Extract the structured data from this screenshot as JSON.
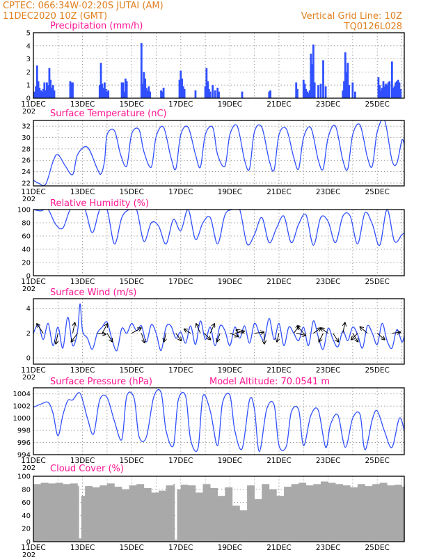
{
  "header": {
    "line1_left": "CPTEC:   066:34W-02:20S   JUTAI (AM)",
    "line2_left": "11DEC2020 10Z (GMT)",
    "line1_right": "Vertical Grid Line: 10Z",
    "line2_right": "TQ0126L028"
  },
  "year_fragment": "202",
  "colors": {
    "header": "#e08020",
    "panel_title": "#ff1493",
    "series": "#3050ff",
    "cloud": "#a9a9a9",
    "arrow": "#000000"
  },
  "chart_data": [
    {
      "id": "precip",
      "type": "bar",
      "title": "Precipitation (mm/h)",
      "ylim": [
        0,
        5
      ],
      "yticks": [
        0,
        1,
        2,
        3,
        4,
        5
      ],
      "xlabels": [
        "11DEC",
        "13DEC",
        "15DEC",
        "17DEC",
        "19DEC",
        "21DEC",
        "23DEC",
        "25DEC"
      ],
      "x_unit": "day offset from 11DEC 10Z",
      "xlim": [
        0,
        15.1
      ],
      "x": [
        0.05,
        0.1,
        0.15,
        0.2,
        0.25,
        0.3,
        0.35,
        0.4,
        0.45,
        0.5,
        0.55,
        0.6,
        0.65,
        0.7,
        0.75,
        0.8,
        0.85,
        1.5,
        1.55,
        1.6,
        2.7,
        2.75,
        2.8,
        2.85,
        2.9,
        2.95,
        3.0,
        3.05,
        3.6,
        3.65,
        3.7,
        3.75,
        3.8,
        4.4,
        4.45,
        4.5,
        4.55,
        4.6,
        4.65,
        4.7,
        4.75,
        5.2,
        5.25,
        5.3,
        5.95,
        6.0,
        6.05,
        6.1,
        6.15,
        6.6,
        7.0,
        7.05,
        7.1,
        7.15,
        7.2,
        7.3,
        7.4,
        7.5,
        7.55,
        8.5,
        9.6,
        9.65,
        10.7,
        10.75,
        11.0,
        11.05,
        11.1,
        11.15,
        11.2,
        11.25,
        11.3,
        11.35,
        11.4,
        11.45,
        11.6,
        11.7,
        11.8,
        11.9,
        12.6,
        12.65,
        12.7,
        12.75,
        12.8,
        12.85,
        13.0,
        13.1,
        14.05,
        14.1,
        14.15,
        14.2,
        14.25,
        14.3,
        14.35,
        14.4,
        14.45,
        14.5,
        14.6,
        14.65,
        14.7,
        14.75,
        14.8,
        14.85,
        14.9,
        14.95
      ],
      "values": [
        0.5,
        0.9,
        2.5,
        1.3,
        0.8,
        0.6,
        0.5,
        0.7,
        1.2,
        0.6,
        1.2,
        1.0,
        2.3,
        1.4,
        0.8,
        1.0,
        0.6,
        1.3,
        1.2,
        1.2,
        1.0,
        2.7,
        1.1,
        0.8,
        1.2,
        0.7,
        0.5,
        0.6,
        1.2,
        1.2,
        0.5,
        1.5,
        1.3,
        4.2,
        1.1,
        2.0,
        1.5,
        0.8,
        0.6,
        0.9,
        0.5,
        0.6,
        0.5,
        0.8,
        1.4,
        2.1,
        1.5,
        0.9,
        0.7,
        0.6,
        0.9,
        2.3,
        1.3,
        0.7,
        0.5,
        1.0,
        0.6,
        0.8,
        0.5,
        0.5,
        0.5,
        0.6,
        1.2,
        0.7,
        1.4,
        1.1,
        0.7,
        0.5,
        0.4,
        0.6,
        3.4,
        2.6,
        4.1,
        1.2,
        1.0,
        1.1,
        2.9,
        0.9,
        0.6,
        1.3,
        3.5,
        2.0,
        2.7,
        1.0,
        1.2,
        0.5,
        1.6,
        1.0,
        0.6,
        0.8,
        1.3,
        0.9,
        1.1,
        1.0,
        1.2,
        1.3,
        2.8,
        0.8,
        0.9,
        1.2,
        1.3,
        1.4,
        1.2,
        0.7
      ]
    },
    {
      "id": "temp",
      "type": "line",
      "title": "Surface Temperature (nC)",
      "ylim": [
        21.5,
        33
      ],
      "yticks": [
        22,
        24,
        26,
        28,
        30,
        32
      ],
      "xlabels": [
        "11DEC",
        "13DEC",
        "15DEC",
        "17DEC",
        "19DEC",
        "21DEC",
        "23DEC",
        "25DEC"
      ],
      "x_unit": "day offset from 11DEC 10Z",
      "xlim": [
        0,
        15.1
      ],
      "x": [
        0,
        0.2,
        0.5,
        0.8,
        1.0,
        1.3,
        1.6,
        1.8,
        2.2,
        2.6,
        2.75,
        2.9,
        3.0,
        3.3,
        3.55,
        3.8,
        4.0,
        4.3,
        4.5,
        4.8,
        5.0,
        5.3,
        5.6,
        5.8,
        6.0,
        6.3,
        6.6,
        6.8,
        7.0,
        7.3,
        7.5,
        7.8,
        8.0,
        8.3,
        8.6,
        8.8,
        9.0,
        9.3,
        9.6,
        9.8,
        10.0,
        10.3,
        10.6,
        10.8,
        11.0,
        11.3,
        11.6,
        11.8,
        12.0,
        12.3,
        12.6,
        12.8,
        13.0,
        13.3,
        13.6,
        13.8,
        14.0,
        14.3,
        14.6,
        14.8,
        15.0,
        15.1
      ],
      "values": [
        22.5,
        22.0,
        21.8,
        25.8,
        27.0,
        25.0,
        23.5,
        27.0,
        28.3,
        24.5,
        23.6,
        26.0,
        30.5,
        31.2,
        27.0,
        25.0,
        30.6,
        31.4,
        27.5,
        24.8,
        30.2,
        31.8,
        26.5,
        24.5,
        30.5,
        31.8,
        27.0,
        24.8,
        30.5,
        31.8,
        27.0,
        25.0,
        30.5,
        32.0,
        26.0,
        24.5,
        31.0,
        31.8,
        26.0,
        24.3,
        30.5,
        31.5,
        26.5,
        24.5,
        30.0,
        31.7,
        26.0,
        24.5,
        30.0,
        32.0,
        26.0,
        24.5,
        30.5,
        32.2,
        26.5,
        25.0,
        31.0,
        33.0,
        26.0,
        25.5,
        29.5,
        28.8
      ]
    },
    {
      "id": "rh",
      "type": "line",
      "title": "Relative Humidity (%)",
      "ylim": [
        0,
        100
      ],
      "yticks": [
        0,
        20,
        40,
        60,
        80,
        100
      ],
      "xlabels": [
        "11DEC",
        "13DEC",
        "15DEC",
        "17DEC",
        "19DEC",
        "21DEC",
        "23DEC",
        "25DEC"
      ],
      "x_unit": "day offset from 11DEC 10Z",
      "xlim": [
        0,
        15.1
      ],
      "x": [
        0,
        0.3,
        0.6,
        0.9,
        1.2,
        1.5,
        1.8,
        2.1,
        2.4,
        2.7,
        3.0,
        3.3,
        3.6,
        3.9,
        4.2,
        4.5,
        4.8,
        5.1,
        5.4,
        5.7,
        6.0,
        6.3,
        6.6,
        6.9,
        7.2,
        7.5,
        7.8,
        8.1,
        8.4,
        8.7,
        9.0,
        9.3,
        9.6,
        9.9,
        10.2,
        10.5,
        10.8,
        11.1,
        11.4,
        11.7,
        12.0,
        12.3,
        12.6,
        12.9,
        13.2,
        13.5,
        13.8,
        14.1,
        14.4,
        14.7,
        15.0,
        15.1
      ],
      "values": [
        100,
        98,
        100,
        78,
        72,
        100,
        100,
        100,
        65,
        100,
        100,
        48,
        88,
        100,
        100,
        52,
        80,
        75,
        48,
        85,
        68,
        100,
        55,
        80,
        88,
        48,
        92,
        100,
        100,
        48,
        62,
        88,
        50,
        72,
        90,
        50,
        78,
        92,
        46,
        88,
        82,
        50,
        90,
        90,
        48,
        95,
        78,
        46,
        100,
        52,
        62,
        64
      ]
    },
    {
      "id": "wind",
      "type": "line",
      "title": "Surface Wind (m/s)",
      "ylim": [
        -0.5,
        4.8
      ],
      "yticks": [
        0,
        2,
        4
      ],
      "xlabels": [
        "11DEC",
        "13DEC",
        "15DEC",
        "17DEC",
        "19DEC",
        "21DEC",
        "23DEC",
        "25DEC"
      ],
      "x_unit": "day offset from 11DEC 10Z",
      "xlim": [
        0,
        15.1
      ],
      "x": [
        0,
        0.2,
        0.4,
        0.6,
        0.8,
        1.0,
        1.2,
        1.4,
        1.6,
        1.8,
        1.9,
        2.0,
        2.2,
        2.4,
        2.6,
        2.8,
        3.0,
        3.2,
        3.4,
        3.6,
        3.8,
        4.0,
        4.2,
        4.4,
        4.6,
        4.8,
        5.0,
        5.2,
        5.4,
        5.6,
        5.8,
        6.0,
        6.2,
        6.4,
        6.6,
        6.8,
        7.0,
        7.2,
        7.4,
        7.6,
        7.8,
        8.0,
        8.2,
        8.4,
        8.6,
        8.8,
        9.0,
        9.2,
        9.4,
        9.6,
        9.8,
        10.0,
        10.2,
        10.4,
        10.6,
        10.8,
        11.0,
        11.2,
        11.4,
        11.6,
        11.8,
        12.0,
        12.2,
        12.4,
        12.6,
        12.8,
        13.0,
        13.2,
        13.4,
        13.6,
        13.8,
        14.0,
        14.2,
        14.4,
        14.6,
        14.8,
        15.0,
        15.1
      ],
      "values": [
        2.0,
        2.7,
        1.5,
        2.8,
        1.0,
        2.5,
        0.8,
        3.3,
        1.0,
        2.2,
        4.4,
        2.2,
        1.6,
        0.7,
        2.0,
        2.5,
        2.9,
        1.5,
        0.6,
        2.4,
        2.0,
        2.8,
        2.2,
        2.6,
        1.3,
        2.7,
        2.0,
        0.6,
        2.5,
        2.6,
        1.6,
        2.1,
        1.2,
        2.6,
        1.1,
        3.0,
        1.5,
        2.5,
        1.0,
        2.6,
        2.2,
        1.0,
        2.5,
        1.6,
        2.6,
        1.2,
        2.8,
        2.0,
        1.5,
        3.2,
        1.5,
        2.8,
        1.0,
        2.5,
        2.0,
        1.4,
        2.5,
        1.0,
        3.0,
        1.7,
        0.7,
        2.4,
        1.5,
        0.9,
        2.2,
        1.4,
        2.5,
        1.9,
        0.8,
        2.6,
        2.0,
        1.1,
        2.8,
        1.4,
        0.8,
        2.3,
        1.3,
        1.8
      ],
      "vectors": [
        {
          "x": 0.4,
          "dx": -0.6,
          "dy": 0.9
        },
        {
          "x": 1.0,
          "dx": -0.2,
          "dy": -1.0
        },
        {
          "x": 1.6,
          "dx": 0.2,
          "dy": 1.0
        },
        {
          "x": 1.8,
          "dx": -0.6,
          "dy": -0.8
        },
        {
          "x": 2.6,
          "dx": 0.8,
          "dy": -0.1
        },
        {
          "x": 2.8,
          "dx": 0.5,
          "dy": 0.9
        },
        {
          "x": 3.0,
          "dx": 0.5,
          "dy": -0.8
        },
        {
          "x": 4.0,
          "dx": 0.9,
          "dy": 0.5
        },
        {
          "x": 4.4,
          "dx": 0.3,
          "dy": -0.9
        },
        {
          "x": 5.4,
          "dx": -0.2,
          "dy": -0.8
        },
        {
          "x": 5.8,
          "dx": 0.5,
          "dy": -0.7
        },
        {
          "x": 6.4,
          "dx": -0.6,
          "dy": 0.4
        },
        {
          "x": 6.8,
          "dx": -0.4,
          "dy": 0.9
        },
        {
          "x": 6.95,
          "dx": 0.6,
          "dy": -0.6
        },
        {
          "x": 7.2,
          "dx": 0.4,
          "dy": 0.9
        },
        {
          "x": 7.6,
          "dx": -0.3,
          "dy": -0.8
        },
        {
          "x": 8.0,
          "dx": 0.8,
          "dy": -0.3
        },
        {
          "x": 8.2,
          "dx": 0.9,
          "dy": 0.2
        },
        {
          "x": 8.6,
          "dx": -0.8,
          "dy": 0.3
        },
        {
          "x": 9.0,
          "dx": 0.9,
          "dy": 0.1
        },
        {
          "x": 9.4,
          "dx": 0.0,
          "dy": -1.0
        },
        {
          "x": 10.0,
          "dx": -0.2,
          "dy": -0.8
        },
        {
          "x": 10.6,
          "dx": 0.5,
          "dy": 0.7
        },
        {
          "x": 10.7,
          "dx": 0.9,
          "dy": -0.2
        },
        {
          "x": 11.0,
          "dx": -0.6,
          "dy": 0.7
        },
        {
          "x": 11.4,
          "dx": 0.7,
          "dy": 0.5
        },
        {
          "x": 11.8,
          "dx": -0.4,
          "dy": -0.8
        },
        {
          "x": 12.0,
          "dx": -0.7,
          "dy": 0.5
        },
        {
          "x": 12.2,
          "dx": 0.5,
          "dy": -0.8
        },
        {
          "x": 12.6,
          "dx": 0.2,
          "dy": 1.0
        },
        {
          "x": 13.0,
          "dx": 0.5,
          "dy": -0.8
        },
        {
          "x": 13.2,
          "dx": -0.6,
          "dy": -0.6
        },
        {
          "x": 13.6,
          "dx": -0.7,
          "dy": 0.6
        },
        {
          "x": 14.0,
          "dx": 0.7,
          "dy": -0.6
        },
        {
          "x": 14.6,
          "dx": 0.8,
          "dy": 0.1
        }
      ]
    },
    {
      "id": "pres",
      "type": "line",
      "title": "Surface Pressure (hPa)",
      "annotation": "Model Altitude: 70.0541 m",
      "ylim": [
        994,
        1005
      ],
      "yticks": [
        994,
        996,
        998,
        1000,
        1002,
        1004
      ],
      "xlabels": [
        "11DEC",
        "13DEC",
        "15DEC",
        "17DEC",
        "19DEC",
        "21DEC",
        "23DEC",
        "25DEC"
      ],
      "x_unit": "day offset from 11DEC 10Z",
      "xlim": [
        0,
        15.1
      ],
      "x": [
        0,
        0.3,
        0.6,
        0.8,
        1.0,
        1.2,
        1.4,
        1.6,
        1.9,
        2.2,
        2.45,
        2.7,
        3.0,
        3.3,
        3.6,
        3.8,
        4.1,
        4.3,
        4.6,
        4.9,
        5.2,
        5.4,
        5.7,
        5.9,
        6.2,
        6.4,
        6.7,
        6.9,
        7.2,
        7.5,
        7.7,
        8.0,
        8.2,
        8.5,
        8.8,
        9.0,
        9.2,
        9.5,
        9.8,
        10.0,
        10.3,
        10.5,
        10.8,
        11.0,
        11.3,
        11.6,
        11.9,
        12.1,
        12.4,
        12.7,
        13.0,
        13.3,
        13.5,
        13.8,
        14.0,
        14.3,
        14.6,
        14.9,
        15.1
      ],
      "values": [
        1001.8,
        1002.3,
        1002.6,
        1000.8,
        997.1,
        1000.5,
        1002.9,
        1003.0,
        1004.1,
        1000.0,
        997.4,
        1003.0,
        1003.4,
        999.5,
        996.5,
        1003.6,
        1003.3,
        997.0,
        996.9,
        1003.5,
        1004.2,
        998.0,
        995.5,
        1003.0,
        1003.6,
        996.5,
        995.0,
        1003.6,
        1001.2,
        995.5,
        1002.5,
        1003.8,
        998.0,
        995.0,
        1003.0,
        1001.5,
        994.5,
        1001.5,
        1002.2,
        995.5,
        995.4,
        1001.0,
        1001.4,
        995.5,
        1000.5,
        1001.3,
        995.2,
        999.0,
        1000.5,
        995.2,
        1000.0,
        1000.6,
        994.8,
        999.8,
        1001.2,
        997.8,
        995.2,
        1000.0,
        998.0
      ]
    },
    {
      "id": "cloud",
      "type": "area",
      "title": "Cloud Cover (%)",
      "ylim": [
        0,
        100
      ],
      "yticks": [
        0,
        20,
        40,
        60,
        80,
        100
      ],
      "xlabels": [
        "11DEC",
        "13DEC",
        "15DEC",
        "17DEC",
        "19DEC",
        "21DEC",
        "23DEC",
        "25DEC"
      ],
      "x_unit": "day offset from 11DEC 10Z",
      "xlim": [
        0,
        15.1
      ],
      "x": [
        0,
        0.3,
        0.6,
        0.9,
        1.2,
        1.5,
        1.8,
        1.85,
        1.95,
        2.1,
        2.4,
        2.7,
        3.0,
        3.3,
        3.6,
        3.9,
        4.2,
        4.5,
        4.8,
        5.1,
        5.4,
        5.7,
        5.75,
        5.85,
        6.0,
        6.3,
        6.6,
        6.9,
        7.2,
        7.5,
        7.8,
        8.1,
        8.4,
        8.7,
        9.0,
        9.3,
        9.6,
        9.9,
        10.2,
        10.5,
        10.8,
        11.1,
        11.4,
        11.7,
        12.0,
        12.3,
        12.6,
        12.9,
        13.2,
        13.5,
        13.8,
        14.1,
        14.4,
        14.7,
        15.0,
        15.1
      ],
      "values": [
        88,
        90,
        89,
        90,
        88,
        89,
        85,
        5,
        70,
        85,
        83,
        86,
        89,
        84,
        80,
        86,
        88,
        82,
        75,
        78,
        86,
        88,
        3,
        80,
        87,
        86,
        75,
        88,
        82,
        70,
        83,
        55,
        48,
        86,
        65,
        88,
        80,
        70,
        84,
        88,
        90,
        86,
        88,
        92,
        90,
        88,
        86,
        83,
        88,
        85,
        88,
        90,
        86,
        87,
        84,
        86
      ]
    }
  ]
}
